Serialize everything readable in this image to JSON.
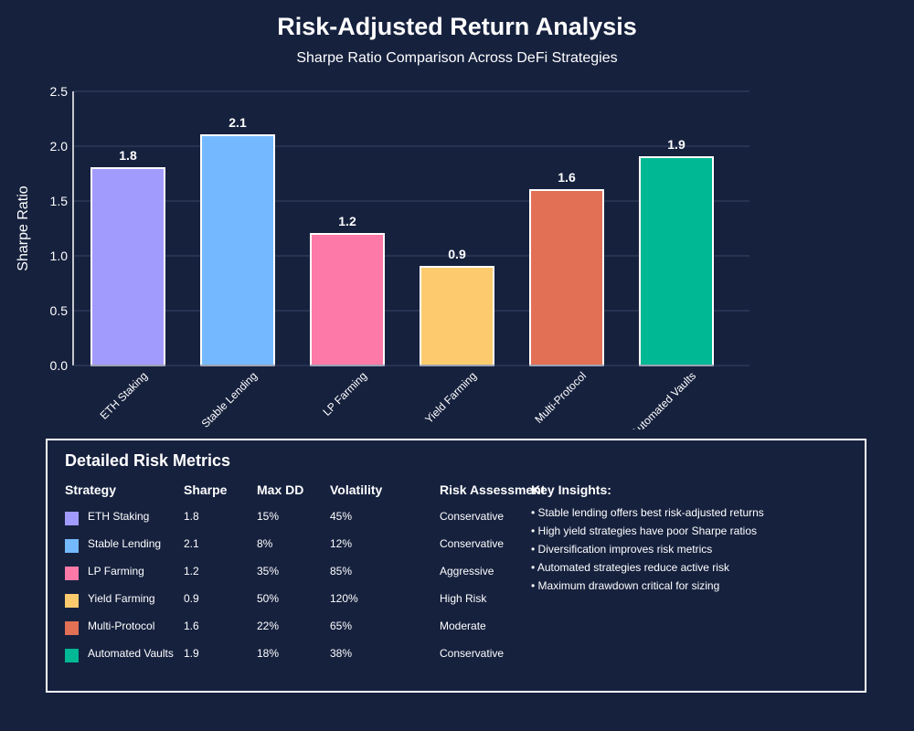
{
  "title": "Risk-Adjusted Return Analysis",
  "subtitle": "Sharpe Ratio Comparison Across DeFi Strategies",
  "chart_data": {
    "type": "bar",
    "title": "Risk-Adjusted Return Analysis",
    "subtitle": "Sharpe Ratio Comparison Across DeFi Strategies",
    "xlabel": "",
    "ylabel": "Sharpe Ratio",
    "ylim": [
      0,
      2.5
    ],
    "yticks": [
      "0.0",
      "0.5",
      "1.0",
      "1.5",
      "2.0",
      "2.5"
    ],
    "grid": true,
    "categories": [
      "ETH Staking",
      "Stable Lending",
      "LP Farming",
      "Yield Farming",
      "Multi-Protocol",
      "Automated Vaults"
    ],
    "values": [
      1.8,
      2.1,
      1.2,
      0.9,
      1.6,
      1.9
    ],
    "value_labels": [
      "1.8",
      "2.1",
      "1.2",
      "0.9",
      "1.6",
      "1.9"
    ],
    "colors": [
      "#a29bfe",
      "#74b9ff",
      "#fd79a8",
      "#fdcb6e",
      "#e17055",
      "#00b894"
    ]
  },
  "metrics": {
    "title": "Detailed Risk Metrics",
    "headers": {
      "strategy": "Strategy",
      "sharpe": "Sharpe",
      "max_dd": "Max DD",
      "volatility": "Volatility",
      "risk": "Risk Assessment"
    },
    "rows": [
      {
        "strategy": "ETH Staking",
        "sharpe": "1.8",
        "max_dd": "15%",
        "volatility": "45%",
        "risk": "Conservative",
        "color": "#a29bfe"
      },
      {
        "strategy": "Stable Lending",
        "sharpe": "2.1",
        "max_dd": "8%",
        "volatility": "12%",
        "risk": "Conservative",
        "color": "#74b9ff"
      },
      {
        "strategy": "LP Farming",
        "sharpe": "1.2",
        "max_dd": "35%",
        "volatility": "85%",
        "risk": "Aggressive",
        "color": "#fd79a8"
      },
      {
        "strategy": "Yield Farming",
        "sharpe": "0.9",
        "max_dd": "50%",
        "volatility": "120%",
        "risk": "High Risk",
        "color": "#fdcb6e"
      },
      {
        "strategy": "Multi-Protocol",
        "sharpe": "1.6",
        "max_dd": "22%",
        "volatility": "65%",
        "risk": "Moderate",
        "color": "#e17055"
      },
      {
        "strategy": "Automated Vaults",
        "sharpe": "1.9",
        "max_dd": "18%",
        "volatility": "38%",
        "risk": "Conservative",
        "color": "#00b894"
      }
    ]
  },
  "insights": {
    "title": "Key Insights:",
    "items": [
      "• Stable lending offers best risk-adjusted returns",
      "• High yield strategies have poor Sharpe ratios",
      "• Diversification improves risk metrics",
      "• Automated strategies reduce active risk",
      "• Maximum drawdown critical for sizing"
    ]
  }
}
